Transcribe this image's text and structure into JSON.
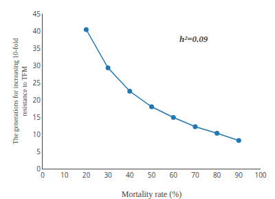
{
  "chart_data": {
    "type": "line",
    "x": [
      20,
      30,
      40,
      50,
      60,
      70,
      80,
      90
    ],
    "values": [
      40.4,
      29.3,
      22.5,
      18.0,
      14.9,
      12.2,
      10.3,
      8.2
    ],
    "xlabel": "Mortality rate (%)",
    "ylabel": "The generations for increasing 10-fold\nresistance to TFM",
    "annotations": [
      "h²=0.09"
    ],
    "xlim": [
      0,
      100
    ],
    "ylim": [
      0,
      45
    ],
    "xticks": [
      0,
      10,
      20,
      30,
      40,
      50,
      60,
      70,
      80,
      90,
      100
    ],
    "yticks": [
      0,
      5,
      10,
      15,
      20,
      25,
      30,
      35,
      40,
      45
    ],
    "marker": "circle",
    "grid": false
  }
}
